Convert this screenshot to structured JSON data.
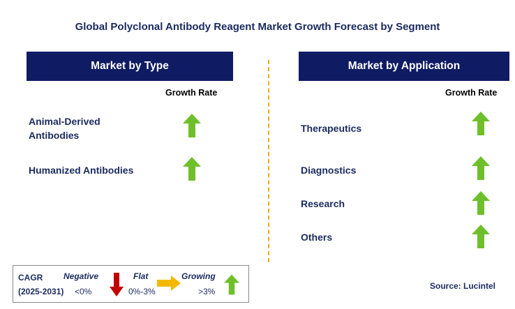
{
  "title": "Global Polyclonal Antibody Reagent Market Growth Forecast by Segment",
  "left_panel": {
    "header": "Market by Type",
    "growth_rate_label": "Growth Rate",
    "items": [
      {
        "line1": "Animal-Derived",
        "line2": "Antibodies",
        "trend": "growing"
      },
      {
        "line1": "Humanized Antibodies",
        "line2": "",
        "trend": "growing"
      }
    ]
  },
  "right_panel": {
    "header": "Market by Application",
    "growth_rate_label": "Growth Rate",
    "items": [
      {
        "label": "Therapeutics",
        "trend": "growing"
      },
      {
        "label": "Diagnostics",
        "trend": "growing"
      },
      {
        "label": "Research",
        "trend": "growing"
      },
      {
        "label": "Others",
        "trend": "growing"
      }
    ]
  },
  "legend": {
    "cagr_label": "CAGR",
    "period": "(2025-2031)",
    "negative": {
      "label": "Negative",
      "range": "<0%",
      "color": "#c00000"
    },
    "flat": {
      "label": "Flat",
      "range": "0%-3%",
      "color": "#f5b800"
    },
    "growing": {
      "label": "Growing",
      "range": ">3%",
      "color": "#6fbf2a"
    }
  },
  "source": "Source: Lucintel",
  "colors": {
    "header_bg": "#0f1b63",
    "divider": "#f0a91c",
    "arrow_green": "#6fbf2a"
  }
}
